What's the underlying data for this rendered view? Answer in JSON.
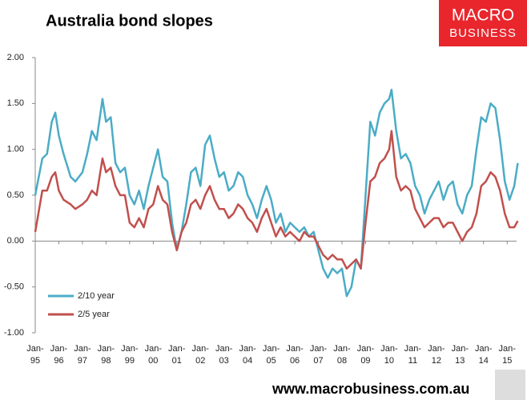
{
  "chart_data": {
    "type": "line",
    "title": "Australia bond slopes",
    "logo": [
      "MACRO",
      "BUSINESS"
    ],
    "footer": "www.macrobusiness.com.au",
    "x": [
      1995.0,
      1995.3,
      1995.5,
      1995.7,
      1995.85,
      1996.0,
      1996.2,
      1996.5,
      1996.7,
      1997.0,
      1997.2,
      1997.4,
      1997.6,
      1997.85,
      1998.0,
      1998.2,
      1998.4,
      1998.6,
      1998.8,
      1999.0,
      1999.2,
      1999.4,
      1999.6,
      1999.8,
      2000.0,
      2000.2,
      2000.4,
      2000.6,
      2000.8,
      2001.0,
      2001.2,
      2001.4,
      2001.6,
      2001.8,
      2002.0,
      2002.2,
      2002.4,
      2002.6,
      2002.8,
      2003.0,
      2003.2,
      2003.4,
      2003.6,
      2003.8,
      2004.0,
      2004.2,
      2004.4,
      2004.6,
      2004.8,
      2005.0,
      2005.2,
      2005.4,
      2005.6,
      2005.8,
      2006.0,
      2006.2,
      2006.4,
      2006.6,
      2006.8,
      2007.0,
      2007.2,
      2007.4,
      2007.6,
      2007.8,
      2008.0,
      2008.2,
      2008.4,
      2008.6,
      2008.8,
      2009.0,
      2009.2,
      2009.4,
      2009.6,
      2009.8,
      2010.0,
      2010.1,
      2010.3,
      2010.5,
      2010.7,
      2010.9,
      2011.1,
      2011.3,
      2011.5,
      2011.7,
      2011.9,
      2012.1,
      2012.3,
      2012.5,
      2012.7,
      2012.9,
      2013.1,
      2013.3,
      2013.5,
      2013.7,
      2013.9,
      2014.1,
      2014.3,
      2014.5,
      2014.7,
      2014.9,
      2015.1,
      2015.3,
      2015.45
    ],
    "series": [
      {
        "name": "2/10 year",
        "color": "#4bacc6",
        "values": [
          0.5,
          0.9,
          0.95,
          1.3,
          1.4,
          1.15,
          0.95,
          0.7,
          0.65,
          0.75,
          0.95,
          1.2,
          1.1,
          1.55,
          1.3,
          1.35,
          0.85,
          0.75,
          0.8,
          0.5,
          0.4,
          0.55,
          0.35,
          0.6,
          0.8,
          1.0,
          0.7,
          0.65,
          0.2,
          -0.1,
          0.1,
          0.4,
          0.75,
          0.8,
          0.6,
          1.05,
          1.15,
          0.9,
          0.7,
          0.75,
          0.55,
          0.6,
          0.75,
          0.7,
          0.5,
          0.4,
          0.25,
          0.45,
          0.6,
          0.45,
          0.2,
          0.3,
          0.1,
          0.2,
          0.15,
          0.1,
          0.15,
          0.05,
          0.1,
          -0.1,
          -0.3,
          -0.4,
          -0.3,
          -0.35,
          -0.3,
          -0.6,
          -0.5,
          -0.2,
          -0.3,
          0.5,
          1.3,
          1.15,
          1.4,
          1.5,
          1.55,
          1.65,
          1.2,
          0.9,
          0.95,
          0.85,
          0.6,
          0.5,
          0.3,
          0.45,
          0.55,
          0.65,
          0.45,
          0.6,
          0.65,
          0.4,
          0.3,
          0.5,
          0.6,
          1.0,
          1.35,
          1.3,
          1.5,
          1.45,
          1.1,
          0.65,
          0.45,
          0.6,
          0.85
        ]
      },
      {
        "name": "2/5 year",
        "color": "#c0504d",
        "values": [
          0.1,
          0.55,
          0.55,
          0.7,
          0.75,
          0.55,
          0.45,
          0.4,
          0.35,
          0.4,
          0.45,
          0.55,
          0.5,
          0.9,
          0.75,
          0.8,
          0.6,
          0.5,
          0.5,
          0.2,
          0.15,
          0.25,
          0.15,
          0.35,
          0.4,
          0.6,
          0.45,
          0.4,
          0.1,
          -0.1,
          0.1,
          0.2,
          0.4,
          0.45,
          0.35,
          0.5,
          0.6,
          0.45,
          0.35,
          0.35,
          0.25,
          0.3,
          0.4,
          0.35,
          0.25,
          0.2,
          0.1,
          0.25,
          0.35,
          0.2,
          0.05,
          0.15,
          0.05,
          0.1,
          0.05,
          0.0,
          0.1,
          0.05,
          0.05,
          -0.05,
          -0.15,
          -0.2,
          -0.15,
          -0.2,
          -0.2,
          -0.3,
          -0.25,
          -0.2,
          -0.3,
          0.2,
          0.65,
          0.7,
          0.85,
          0.9,
          1.0,
          1.2,
          0.7,
          0.55,
          0.6,
          0.55,
          0.35,
          0.25,
          0.15,
          0.2,
          0.25,
          0.25,
          0.15,
          0.2,
          0.2,
          0.1,
          0.0,
          0.1,
          0.15,
          0.3,
          0.6,
          0.65,
          0.75,
          0.7,
          0.55,
          0.3,
          0.15,
          0.15,
          0.22
        ]
      }
    ],
    "xlim": [
      1995,
      2015.4
    ],
    "xticks": [
      {
        "value": 1995,
        "label": "Jan-95"
      },
      {
        "value": 1996,
        "label": "Jan-96"
      },
      {
        "value": 1997,
        "label": "Jan-97"
      },
      {
        "value": 1998,
        "label": "Jan-98"
      },
      {
        "value": 1999,
        "label": "Jan-99"
      },
      {
        "value": 2000,
        "label": "Jan-00"
      },
      {
        "value": 2001,
        "label": "Jan-01"
      },
      {
        "value": 2002,
        "label": "Jan-02"
      },
      {
        "value": 2003,
        "label": "Jan-03"
      },
      {
        "value": 2004,
        "label": "Jan-04"
      },
      {
        "value": 2005,
        "label": "Jan-05"
      },
      {
        "value": 2006,
        "label": "Jan-06"
      },
      {
        "value": 2007,
        "label": "Jan-07"
      },
      {
        "value": 2008,
        "label": "Jan-08"
      },
      {
        "value": 2009,
        "label": "Jan-09"
      },
      {
        "value": 2010,
        "label": "Jan-10"
      },
      {
        "value": 2011,
        "label": "Jan-11"
      },
      {
        "value": 2012,
        "label": "Jan-12"
      },
      {
        "value": 2013,
        "label": "Jan-13"
      },
      {
        "value": 2014,
        "label": "Jan-14"
      },
      {
        "value": 2015,
        "label": "Jan-15"
      }
    ],
    "ylim": [
      -1,
      2
    ],
    "yticks": [
      {
        "value": 2,
        "label": "2.00"
      },
      {
        "value": 1.5,
        "label": "1.50"
      },
      {
        "value": 1,
        "label": "1.00"
      },
      {
        "value": 0.5,
        "label": "0.50"
      },
      {
        "value": 0,
        "label": "0.00"
      },
      {
        "value": -0.5,
        "label": "-0.50"
      },
      {
        "value": -1,
        "label": "-1.00"
      }
    ],
    "legend": "lower left"
  }
}
